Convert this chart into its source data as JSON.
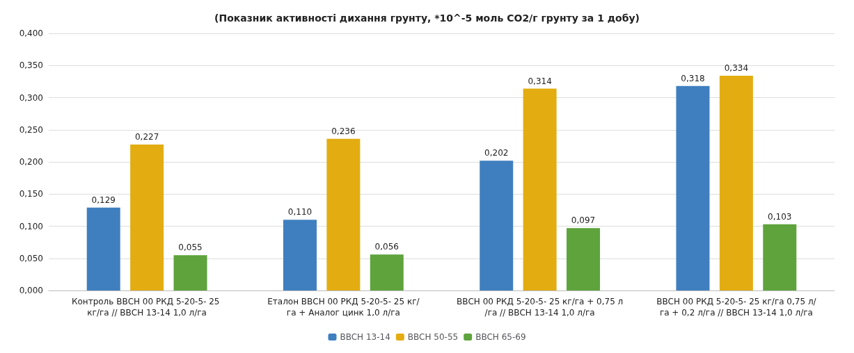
{
  "chart_data": {
    "type": "bar",
    "title": "(Показник активності дихання грунту, *10^-5 моль СО2/г грунту за 1 добу)",
    "categories": [
      "Контроль ВВСН 00 РКД 5-20-5- 25 кг/га // ВВСН 13-14 1,0 л/га",
      "Еталон ВВСН 00 РКД 5-20-5- 25 кг/га + Аналог цинк 1,0 л/га",
      "ВВСН 00 РКД 5-20-5- 25 кг/га + 0,75 л/га // ВВСН 13-14 1,0 л/га",
      "ВВСН 00 РКД 5-20-5- 25 кг/га 0,75 л/га + 0,2 л/га // ВВСН 13-14 1,0 л/га"
    ],
    "series": [
      {
        "name": "BBCH 13-14",
        "color": "#3f7fbf",
        "values": [
          0.129,
          0.11,
          0.202,
          0.318
        ],
        "value_labels": [
          "0,129",
          "0,110",
          "0,202",
          "0,318"
        ]
      },
      {
        "name": "BBCH 50-55",
        "color": "#e3ad12",
        "values": [
          0.227,
          0.236,
          0.314,
          0.334
        ],
        "value_labels": [
          "0,227",
          "0,236",
          "0,314",
          "0,334"
        ]
      },
      {
        "name": "BBCH 65-69",
        "color": "#5ea33c",
        "values": [
          0.055,
          0.056,
          0.097,
          0.103
        ],
        "value_labels": [
          "0,055",
          "0,056",
          "0,097",
          "0,103"
        ]
      }
    ],
    "ylim": [
      0,
      0.4
    ],
    "yticks": [
      {
        "value": 0,
        "label": "0,000"
      },
      {
        "value": 0.05,
        "label": "0,050"
      },
      {
        "value": 0.1,
        "label": "0,100"
      },
      {
        "value": 0.15,
        "label": "0,150"
      },
      {
        "value": 0.2,
        "label": "0,200"
      },
      {
        "value": 0.25,
        "label": "0,250"
      },
      {
        "value": 0.3,
        "label": "0,300"
      },
      {
        "value": 0.35,
        "label": "0,350"
      },
      {
        "value": 0.4,
        "label": "0,400"
      }
    ],
    "grid": true,
    "legend": "bottom"
  }
}
